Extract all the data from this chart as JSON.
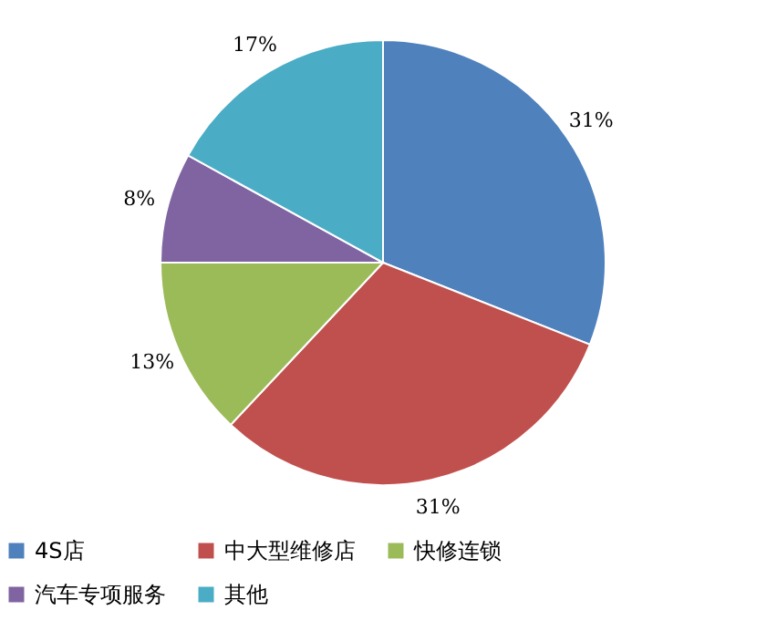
{
  "chart_data": {
    "type": "pie",
    "categories": [
      "4S店",
      "中大型维修店",
      "快修连锁",
      "汽车专项服务",
      "其他"
    ],
    "values": [
      31,
      31,
      13,
      8,
      17
    ],
    "colors": [
      "#4f81bd",
      "#c0504d",
      "#9bbb59",
      "#8064a2",
      "#4bacc6"
    ],
    "value_labels": [
      "31%",
      "31%",
      "13%",
      "8%",
      "17%"
    ],
    "legend": "bottom"
  }
}
